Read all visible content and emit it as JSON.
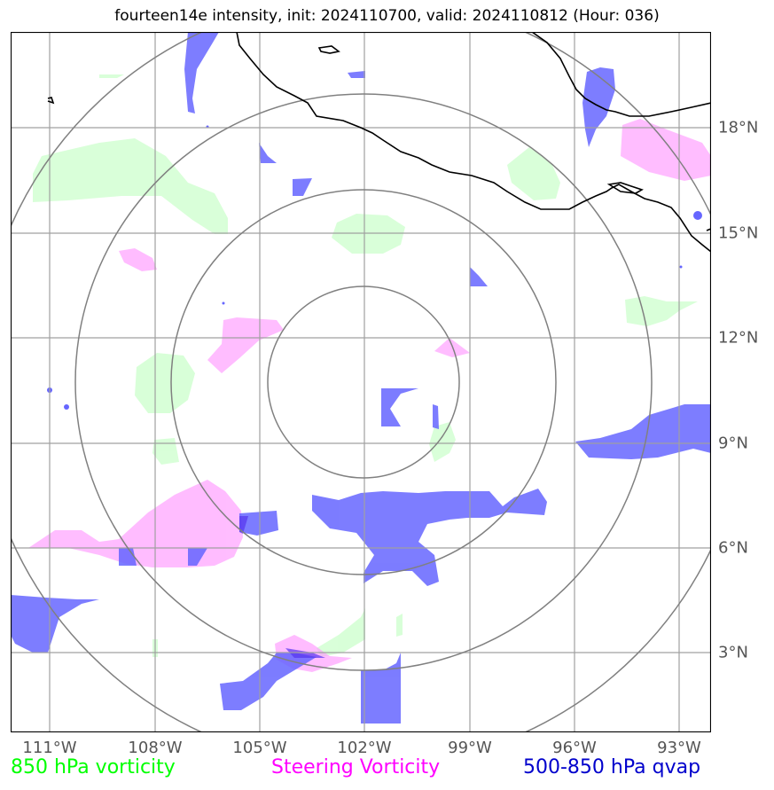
{
  "title": "fourteen14e intensity, init: 2024110700, valid: 2024110812 (Hour: 036)",
  "lon_ticks": [
    "111°W",
    "108°W",
    "105°W",
    "102°W",
    "99°W",
    "96°W",
    "93°W"
  ],
  "lat_ticks": [
    "18°N",
    "15°N",
    "12°N",
    "9°N",
    "6°N",
    "3°N"
  ],
  "legend": {
    "vort850": "850 hPa vorticity",
    "steering": "Steering Vorticity",
    "qvap": "500-850 hPa qvap"
  },
  "colors": {
    "vort850_text": "#00ff00",
    "steering_text": "#ff00ff",
    "qvap_text": "#0000cc",
    "vort850_fill": "#ccffcc",
    "steering_fill": "#ff99ff",
    "qvap_fill": "#6666ff",
    "range_rings": "#808080",
    "gridlines": "#a0a0a0",
    "coastline": "#000000"
  },
  "map": {
    "lon_range": [
      -112.1,
      -92.1
    ],
    "lat_range": [
      1.0,
      20.0
    ],
    "range_rings": "4 concentric rings centered near 102°W, 10.8°N"
  }
}
